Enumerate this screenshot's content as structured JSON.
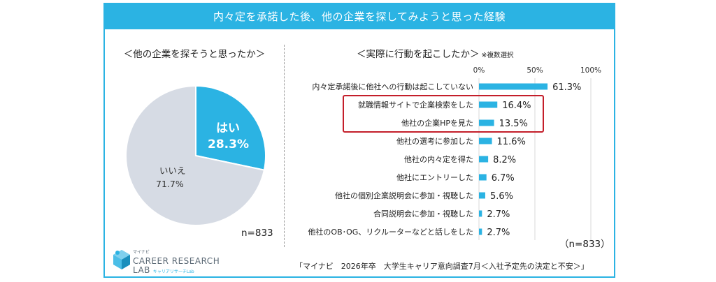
{
  "title": "内々定を承諾した後、他の企業を探してみようと思った経験",
  "pie_panel": {
    "title": "＜他の企業を探そうと思ったか＞",
    "n": "n=833"
  },
  "bar_panel": {
    "title": "＜実際に行動を起こしたか＞",
    "note": "※複数選択",
    "n": "（n=833）"
  },
  "source": "「マイナビ　2026年卒　大学生キャリア意向調査7月＜入社予定先の決定と不安＞」",
  "logo": {
    "top": "マイナビ",
    "line1": "CAREER RESEARCH",
    "line2": "LAB",
    "kana": "キャリアリサーチLab"
  },
  "colors": {
    "accent": "#2bb3e3",
    "pie_other": "#d6dbe4",
    "highlight_box": "#c41e2a"
  },
  "chart_data": [
    {
      "type": "pie",
      "labels": [
        "はい",
        "いいえ"
      ],
      "values": [
        28.3,
        71.7
      ],
      "value_labels": [
        "28.3%",
        "71.7%"
      ],
      "colors": [
        "#2bb3e3",
        "#d6dbe4"
      ]
    },
    {
      "type": "bar",
      "orientation": "horizontal",
      "categories": [
        "内々定承諾後に他社への行動は起こしていない",
        "就職情報サイトで企業検索をした",
        "他社の企業HPを見た",
        "他社の選考に参加した",
        "他社の内々定を得た",
        "他社にエントリーした",
        "他社の個別企業説明会に参加・視聴した",
        "合同説明会に参加・視聴した",
        "他社のOB･OG、リクルーターなどと話しをした"
      ],
      "values": [
        61.3,
        16.4,
        13.5,
        11.6,
        8.2,
        6.7,
        5.6,
        2.7,
        2.7
      ],
      "value_labels": [
        "61.3%",
        "16.4%",
        "13.5%",
        "11.6%",
        "8.2%",
        "6.7%",
        "5.6%",
        "2.7%",
        "2.7%"
      ],
      "xlim": [
        0,
        100
      ],
      "xticks": [
        0,
        50,
        100
      ],
      "xtick_labels": [
        "0%",
        "50%",
        "100%"
      ],
      "grid": true,
      "highlighted_categories": [
        "就職情報サイトで企業検索をした",
        "他社の企業HPを見た"
      ]
    }
  ]
}
